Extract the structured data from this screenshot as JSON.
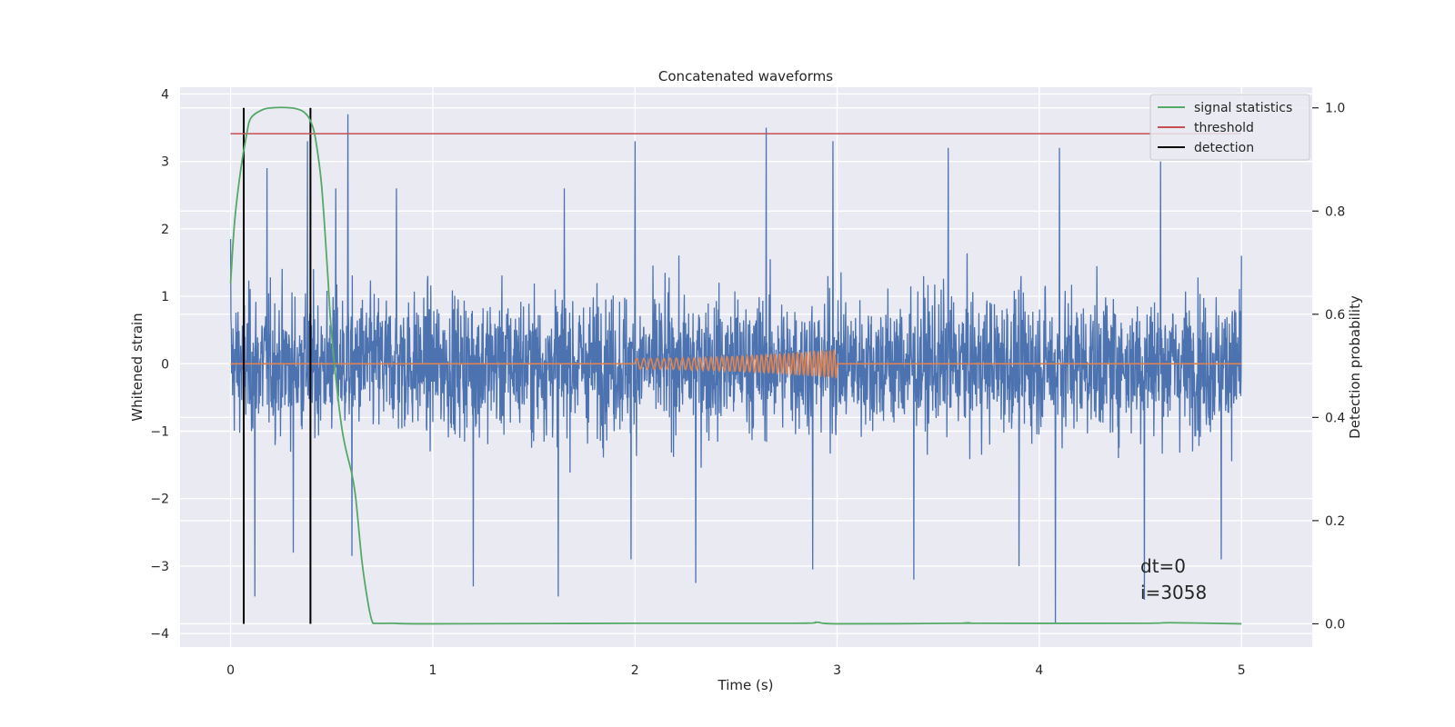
{
  "chart_data": {
    "type": "line",
    "title": "Concatenated waveforms",
    "xlabel": "Time (s)",
    "ylabel": "Whitened strain",
    "y2label": "Detection probability",
    "xlim": [
      -0.25,
      5.35
    ],
    "ylim": [
      -4.2,
      4.1
    ],
    "y2lim": [
      -0.045,
      1.04
    ],
    "x_ticks": [
      0,
      1,
      2,
      3,
      4,
      5
    ],
    "x_tick_labels": [
      "0",
      "1",
      "2",
      "3",
      "4",
      "5"
    ],
    "y_ticks": [
      4,
      3,
      2,
      1,
      0,
      -1,
      -2,
      -3,
      -4
    ],
    "y_tick_labels": [
      "4",
      "3",
      "2",
      "1",
      "0",
      "−1",
      "−2",
      "−3",
      "−4"
    ],
    "y2_ticks": [
      1.0,
      0.8,
      0.6,
      0.4,
      0.2,
      0.0
    ],
    "y2_tick_labels": [
      "1.0",
      "0.8",
      "0.6",
      "0.4",
      "0.2",
      "0.0"
    ],
    "grid": true,
    "legend_position": "top-right",
    "legend": [
      {
        "label": "signal statistics",
        "color": "#55a868"
      },
      {
        "label": "threshold",
        "color": "#c44e52"
      },
      {
        "label": "detection",
        "color": "#000000"
      }
    ],
    "annotations": [
      "dt=0",
      "i=3058"
    ],
    "annotation_x": 4.5,
    "annotation_y": [
      -3.0,
      -3.4
    ],
    "series": [
      {
        "kind": "noise",
        "color": "#4c72b0",
        "x_range": [
          0,
          5
        ],
        "envelope_typical": 1.6,
        "peaks": [
          {
            "x": 0.0,
            "y": 1.85
          },
          {
            "x": 0.12,
            "y": -3.45
          },
          {
            "x": 0.18,
            "y": 2.9
          },
          {
            "x": 0.31,
            "y": -2.8
          },
          {
            "x": 0.38,
            "y": 3.3
          },
          {
            "x": 0.52,
            "y": 2.6
          },
          {
            "x": 0.58,
            "y": 3.7
          },
          {
            "x": 0.6,
            "y": -2.85
          },
          {
            "x": 0.82,
            "y": 2.6
          },
          {
            "x": 1.2,
            "y": -3.3
          },
          {
            "x": 1.62,
            "y": -3.45
          },
          {
            "x": 1.65,
            "y": 2.6
          },
          {
            "x": 1.98,
            "y": -2.9
          },
          {
            "x": 2.0,
            "y": 3.3
          },
          {
            "x": 2.3,
            "y": -3.25
          },
          {
            "x": 2.65,
            "y": 3.5
          },
          {
            "x": 2.88,
            "y": -3.05
          },
          {
            "x": 2.98,
            "y": 3.3
          },
          {
            "x": 3.38,
            "y": -3.2
          },
          {
            "x": 3.55,
            "y": 3.2
          },
          {
            "x": 3.9,
            "y": -3.0
          },
          {
            "x": 4.08,
            "y": -3.85
          },
          {
            "x": 4.1,
            "y": 3.2
          },
          {
            "x": 4.52,
            "y": -3.5
          },
          {
            "x": 4.6,
            "y": 3.0
          },
          {
            "x": 4.9,
            "y": -2.9
          },
          {
            "x": 5.0,
            "y": 1.6
          }
        ]
      },
      {
        "kind": "chirp",
        "color": "#dd8452",
        "x_range": [
          0,
          5
        ],
        "chirp_start": 2.0,
        "chirp_end": 3.0,
        "amplitude_start": 0.08,
        "amplitude_end": 0.22
      },
      {
        "name": "signal statistics",
        "color": "#55a868",
        "axis": "right",
        "x": [
          0.0,
          0.02,
          0.05,
          0.08,
          0.1,
          0.15,
          0.2,
          0.3,
          0.35,
          0.38,
          0.4,
          0.42,
          0.45,
          0.48,
          0.5,
          0.55,
          0.6,
          0.62,
          0.65,
          0.68,
          0.7,
          0.72,
          0.8,
          1.0,
          2.0,
          2.8,
          2.9,
          3.0,
          3.6,
          3.65,
          3.7,
          4.5,
          4.65,
          5.0
        ],
        "y": [
          0.66,
          0.78,
          0.88,
          0.95,
          0.98,
          0.995,
          1.0,
          1.0,
          0.995,
          0.985,
          0.97,
          0.94,
          0.85,
          0.68,
          0.56,
          0.38,
          0.29,
          0.24,
          0.12,
          0.04,
          0.005,
          0.001,
          0.001,
          0.0,
          0.001,
          0.001,
          0.003,
          0.0,
          0.001,
          0.002,
          0.001,
          0.001,
          0.002,
          0.0
        ]
      },
      {
        "name": "threshold",
        "color": "#c44e52",
        "axis": "right",
        "x": [
          0,
          5
        ],
        "y": [
          0.95,
          0.95
        ]
      }
    ],
    "detections": [
      0.065,
      0.395
    ],
    "detection_color": "#000000"
  }
}
